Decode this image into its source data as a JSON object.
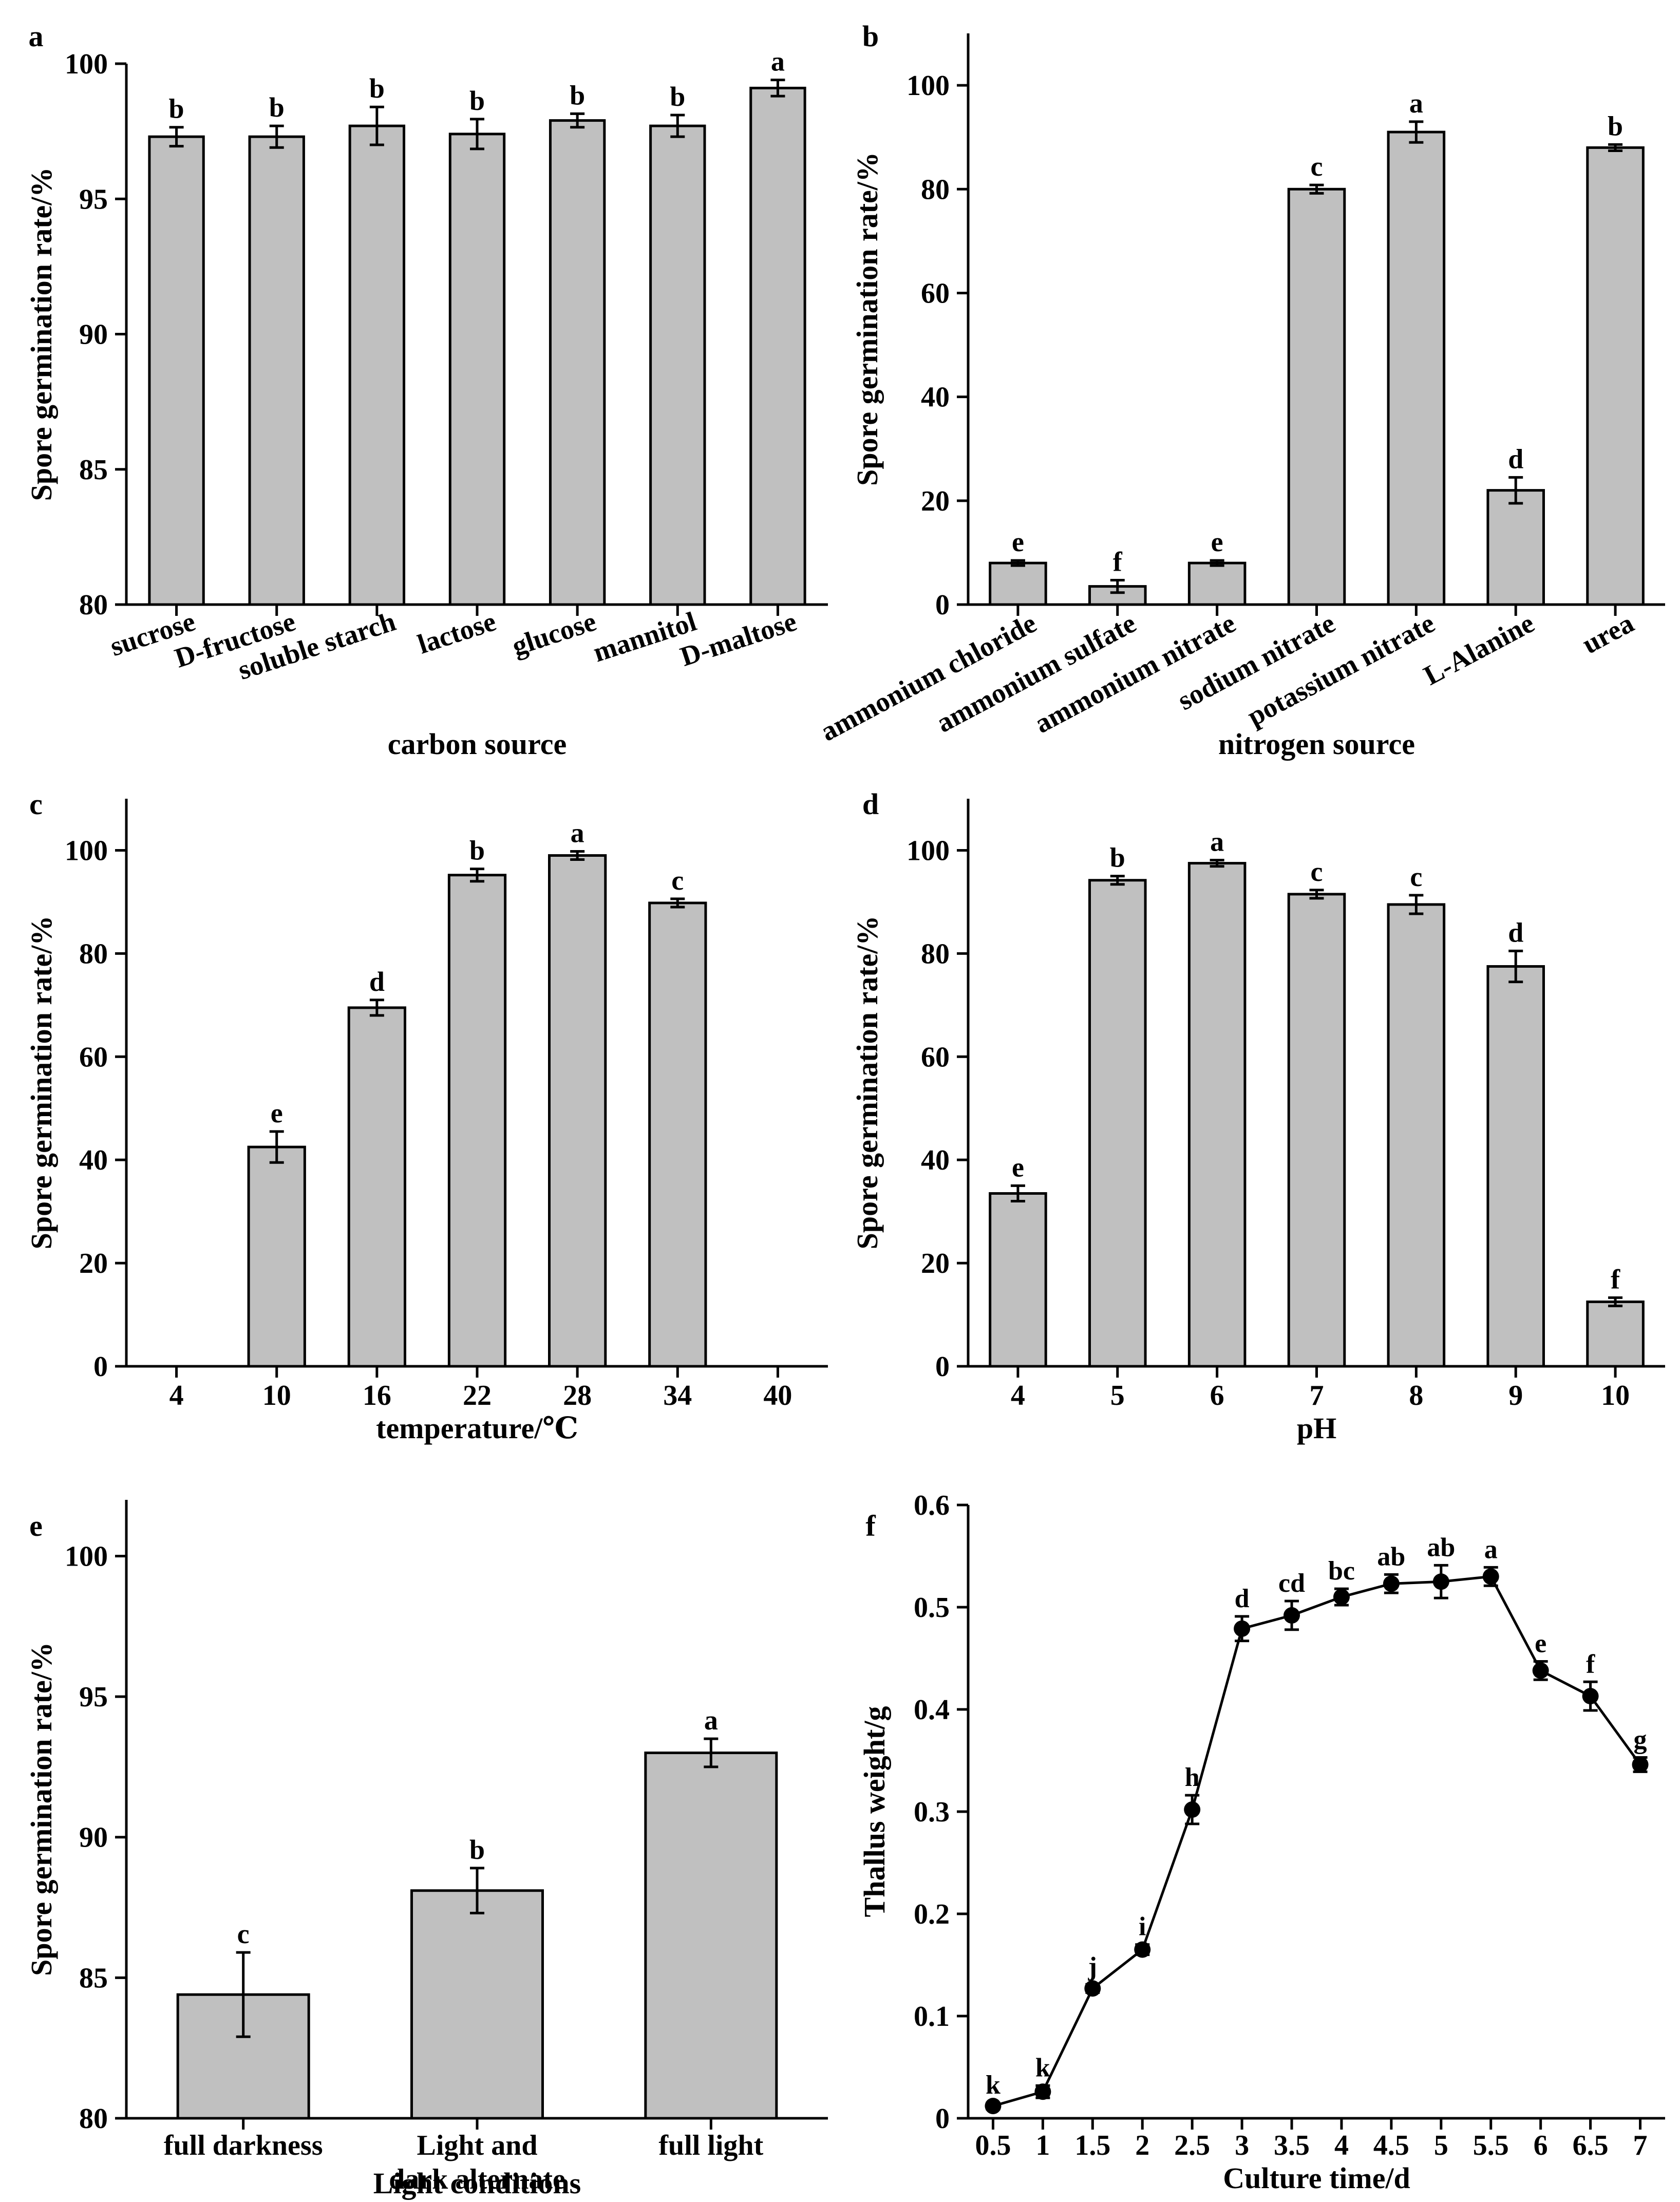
{
  "chart_data": [
    {
      "panel": "a",
      "type": "bar",
      "xlabel": "carbon source",
      "ylabel": "Spore germination rate/%",
      "ylim": [
        80,
        100
      ],
      "yticks": [
        80,
        85,
        90,
        95,
        100
      ],
      "categories": [
        "sucrose",
        "D-fructose",
        "soluble starch",
        "lactose",
        "glucose",
        "mannitol",
        "D-maltose"
      ],
      "values": [
        97.3,
        97.3,
        97.7,
        97.4,
        97.9,
        97.7,
        99.1
      ],
      "errors": [
        0.35,
        0.4,
        0.7,
        0.55,
        0.25,
        0.4,
        0.3
      ],
      "letters": [
        "b",
        "b",
        "b",
        "b",
        "b",
        "b",
        "a"
      ]
    },
    {
      "panel": "b",
      "type": "bar",
      "xlabel": "nitrogen source",
      "ylabel": "Spore germination rate/%",
      "ylim": [
        0,
        110
      ],
      "yticks": [
        0,
        20,
        40,
        60,
        80,
        100
      ],
      "categories": [
        "ammonium chloride",
        "ammonium sulfate",
        "ammonium nitrate",
        "sodium nitrate",
        "potassium nitrate",
        "L-Alanine",
        "urea"
      ],
      "values": [
        8,
        3.5,
        8,
        80,
        91,
        22,
        88
      ],
      "errors": [
        0.5,
        1.2,
        0.5,
        0.8,
        2,
        2.5,
        0.6
      ],
      "letters": [
        "e",
        "f",
        "e",
        "c",
        "a",
        "d",
        "b"
      ]
    },
    {
      "panel": "c",
      "type": "bar",
      "xlabel": "temperature/℃",
      "ylabel": "Spore germination rate/%",
      "ylim": [
        0,
        110
      ],
      "yticks": [
        0,
        20,
        40,
        60,
        80,
        100
      ],
      "categories": [
        "4",
        "10",
        "16",
        "22",
        "28",
        "34",
        "40"
      ],
      "values": [
        0,
        42.5,
        69.5,
        95.2,
        99,
        89.8,
        0
      ],
      "errors": [
        0,
        3,
        1.5,
        1.2,
        0.8,
        0.8,
        0
      ],
      "letters": [
        "",
        "e",
        "d",
        "b",
        "a",
        "c",
        ""
      ]
    },
    {
      "panel": "d",
      "type": "bar",
      "xlabel": "pH",
      "ylabel": "Spore germination rate/%",
      "ylim": [
        0,
        110
      ],
      "yticks": [
        0,
        20,
        40,
        60,
        80,
        100
      ],
      "categories": [
        "4",
        "5",
        "6",
        "7",
        "8",
        "9",
        "10"
      ],
      "values": [
        33.5,
        94.2,
        97.5,
        91.5,
        89.5,
        77.5,
        12.5
      ],
      "errors": [
        1.5,
        0.8,
        0.6,
        0.8,
        1.8,
        3,
        0.8
      ],
      "letters": [
        "e",
        "b",
        "a",
        "c",
        "c",
        "d",
        "f"
      ]
    },
    {
      "panel": "e",
      "type": "bar",
      "xlabel": "Light conditions",
      "ylabel": "Spore germination rate/%",
      "ylim": [
        80,
        102
      ],
      "yticks": [
        80,
        85,
        90,
        95,
        100
      ],
      "categories": [
        "full darkness",
        "Light and dark alternate",
        "full light"
      ],
      "values": [
        84.4,
        88.1,
        93
      ],
      "errors": [
        1.5,
        0.8,
        0.5
      ],
      "letters": [
        "c",
        "b",
        "a"
      ]
    },
    {
      "panel": "f",
      "type": "line",
      "xlabel": "Culture time/d",
      "ylabel": "Thallus weight/g",
      "ylim": [
        0,
        0.6
      ],
      "yticks": [
        "0",
        "0.1",
        "0.2",
        "0.3",
        "0.4",
        "0.5",
        "0.6"
      ],
      "x": [
        "0.5",
        "1",
        "1.5",
        "2",
        "2.5",
        "3",
        "3.5",
        "4",
        "4.5",
        "5",
        "5.5",
        "6",
        "6.5",
        "7"
      ],
      "values": [
        0.012,
        0.026,
        0.127,
        0.165,
        0.302,
        0.479,
        0.492,
        0.51,
        0.523,
        0.525,
        0.53,
        0.438,
        0.413,
        0.346
      ],
      "errors": [
        0.003,
        0.006,
        0.004,
        0.005,
        0.014,
        0.012,
        0.014,
        0.008,
        0.009,
        0.016,
        0.009,
        0.009,
        0.014,
        0.007
      ],
      "letters": [
        "k",
        "k",
        "j",
        "i",
        "h",
        "d",
        "cd",
        "bc",
        "ab",
        "ab",
        "a",
        "e",
        "f",
        "g"
      ]
    }
  ]
}
